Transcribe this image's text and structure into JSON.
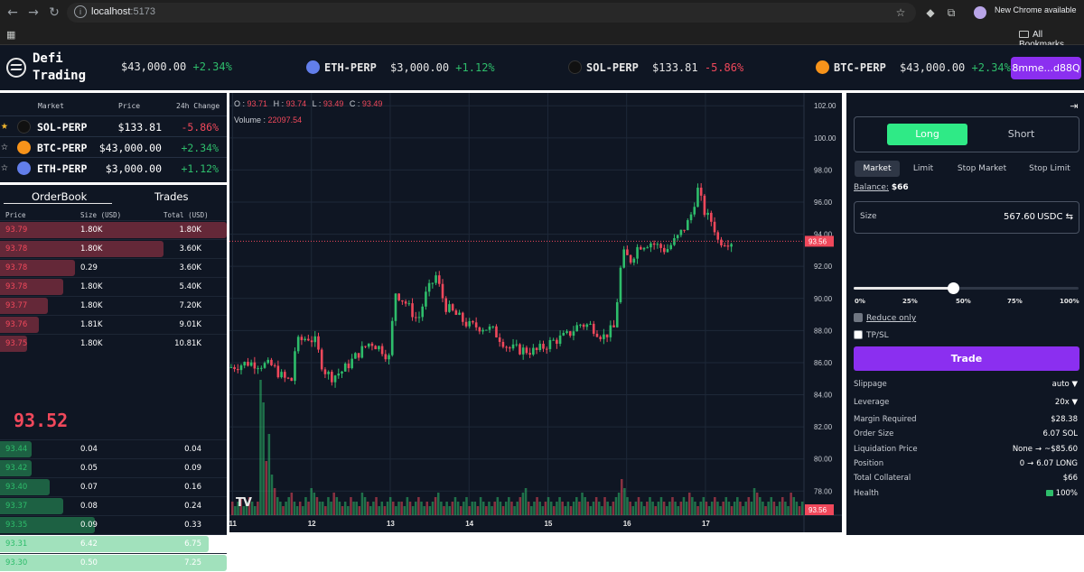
{
  "browser": {
    "url_host": "localhost",
    "url_port": ":5173",
    "new_chrome_label": "New Chrome available",
    "all_bookmarks_label": "All Bookmarks"
  },
  "header": {
    "brand_line1": "Defi",
    "brand_line2": "Trading",
    "tickers": [
      {
        "symbol": "",
        "price": "$43,000.00",
        "change": "+2.34%",
        "direction": "up",
        "coin_color": ""
      },
      {
        "symbol": "ETH-PERP",
        "price": "$3,000.00",
        "change": "+1.12%",
        "direction": "up",
        "coin_color": "#627eea"
      },
      {
        "symbol": "SOL-PERP",
        "price": "$133.81",
        "change": "-5.86%",
        "direction": "down",
        "coin_color": "#111111"
      },
      {
        "symbol": "BTC-PERP",
        "price": "$43,000.00",
        "change": "+2.34%",
        "direction": "up",
        "coin_color": "#f7931a"
      }
    ],
    "wallet_label": "8mme...d88Q"
  },
  "markets": {
    "headers": {
      "market": "Market",
      "price": "Price",
      "change": "24h Change"
    },
    "rows": [
      {
        "symbol": "SOL-PERP",
        "price": "$133.81",
        "change": "-5.86%",
        "direction": "down",
        "favorite": true,
        "coin_color": "#111111"
      },
      {
        "symbol": "BTC-PERP",
        "price": "$43,000.00",
        "change": "+2.34%",
        "direction": "up",
        "favorite": false,
        "coin_color": "#f7931a"
      },
      {
        "symbol": "ETH-PERP",
        "price": "$3,000.00",
        "change": "+1.12%",
        "direction": "up",
        "favorite": false,
        "coin_color": "#627eea"
      }
    ]
  },
  "orderbook": {
    "tabs": [
      "OrderBook",
      "Trades"
    ],
    "active_tab": "OrderBook",
    "headers": {
      "price": "Price",
      "size": "Size (USD)",
      "total": "Total (USD)"
    },
    "asks": [
      {
        "price": "93.79",
        "size": "1.80K",
        "total": "1.80K",
        "depth": 1.0
      },
      {
        "price": "93.78",
        "size": "1.80K",
        "total": "3.60K",
        "depth": 0.72
      },
      {
        "price": "93.78",
        "size": "0.29",
        "total": "3.60K",
        "depth": 0.33
      },
      {
        "price": "93.78",
        "size": "1.80K",
        "total": "5.40K",
        "depth": 0.28
      },
      {
        "price": "93.77",
        "size": "1.80K",
        "total": "7.20K",
        "depth": 0.21
      },
      {
        "price": "93.76",
        "size": "1.81K",
        "total": "9.01K",
        "depth": 0.17
      },
      {
        "price": "93.75",
        "size": "1.80K",
        "total": "10.81K",
        "depth": 0.12
      }
    ],
    "mid_price": "93.52",
    "bids": [
      {
        "price": "93.44",
        "size": "0.04",
        "total": "0.04",
        "depth": 0.14
      },
      {
        "price": "93.42",
        "size": "0.05",
        "total": "0.09",
        "depth": 0.14
      },
      {
        "price": "93.40",
        "size": "0.07",
        "total": "0.16",
        "depth": 0.22
      },
      {
        "price": "93.37",
        "size": "0.08",
        "total": "0.24",
        "depth": 0.28
      },
      {
        "price": "93.35",
        "size": "0.09",
        "total": "0.33",
        "depth": 0.42
      },
      {
        "price": "93.31",
        "size": "6.42",
        "total": "6.75",
        "depth": 0.92
      },
      {
        "price": "93.30",
        "size": "0.50",
        "total": "7.25",
        "depth": 1.0
      }
    ]
  },
  "chart": {
    "ohlc": {
      "o_label": "O",
      "o": "93.71",
      "h_label": "H",
      "h": "93.74",
      "l_label": "L",
      "l": "93.49",
      "c_label": "C",
      "c": "93.49"
    },
    "volume_label": "Volume :",
    "volume_value": "22097.54",
    "logo_text": "TV",
    "last_price_tag": "93.56",
    "last_volume_tag": "93.56"
  },
  "chart_data": {
    "type": "candlestick",
    "y_ticks": [
      "102.00",
      "100.00",
      "98.00",
      "96.00",
      "94.00",
      "92.00",
      "90.00",
      "88.00",
      "86.00",
      "84.00",
      "82.00",
      "80.00",
      "78.00"
    ],
    "ylim": [
      76.5,
      102.8
    ],
    "x_ticks": [
      "11",
      "12",
      "13",
      "14",
      "15",
      "16",
      "17"
    ],
    "x_tick_positions_days": [
      11,
      12,
      13,
      14,
      15,
      16,
      17
    ],
    "xlim": [
      10.96,
      18.25
    ],
    "last_price": 93.56,
    "close_path": [
      [
        10.96,
        85.7
      ],
      [
        11.2,
        86.0
      ],
      [
        11.5,
        85.8
      ],
      [
        11.65,
        85.0
      ],
      [
        11.75,
        84.9
      ],
      [
        11.8,
        87.2
      ],
      [
        11.95,
        87.6
      ],
      [
        12.05,
        87.3
      ],
      [
        12.15,
        85.6
      ],
      [
        12.25,
        85.1
      ],
      [
        12.4,
        85.5
      ],
      [
        12.6,
        86.6
      ],
      [
        12.75,
        87.3
      ],
      [
        12.9,
        86.8
      ],
      [
        13.0,
        86.2
      ],
      [
        13.05,
        90.5
      ],
      [
        13.2,
        89.7
      ],
      [
        13.35,
        88.6
      ],
      [
        13.45,
        90.2
      ],
      [
        13.58,
        91.4
      ],
      [
        13.7,
        89.5
      ],
      [
        13.85,
        88.9
      ],
      [
        14.0,
        88.3
      ],
      [
        14.2,
        88.2
      ],
      [
        14.3,
        88.0
      ],
      [
        14.4,
        87.5
      ],
      [
        14.5,
        86.9
      ],
      [
        14.65,
        86.8
      ],
      [
        14.85,
        86.7
      ],
      [
        15.05,
        87.3
      ],
      [
        15.25,
        87.7
      ],
      [
        15.4,
        88.4
      ],
      [
        15.55,
        88.3
      ],
      [
        15.7,
        87.6
      ],
      [
        15.85,
        88.2
      ],
      [
        15.9,
        91.0
      ],
      [
        15.95,
        92.8
      ],
      [
        16.05,
        92.4
      ],
      [
        16.15,
        93.3
      ],
      [
        16.3,
        93.5
      ],
      [
        16.5,
        93.0
      ],
      [
        16.65,
        93.8
      ],
      [
        16.8,
        94.9
      ],
      [
        16.9,
        96.8
      ],
      [
        17.0,
        95.2
      ],
      [
        17.1,
        94.7
      ],
      [
        17.15,
        93.6
      ],
      [
        17.35,
        93.56
      ]
    ],
    "volumes": [
      3,
      2,
      3,
      4,
      2,
      3,
      4,
      3,
      2,
      3,
      30,
      25,
      12,
      18,
      9,
      6,
      4,
      3,
      2,
      3,
      4,
      5,
      3,
      2,
      3,
      2,
      4,
      3,
      6,
      5,
      4,
      3,
      3,
      2,
      4,
      3,
      5,
      4,
      3,
      2,
      3,
      2,
      4,
      3,
      3,
      2,
      5,
      4,
      3,
      2,
      3,
      4,
      2,
      3,
      2,
      3,
      4,
      3,
      2,
      3,
      3,
      2,
      4,
      3,
      2,
      3,
      4,
      3,
      2,
      3,
      2,
      3,
      4,
      5,
      3,
      2,
      3,
      2,
      3,
      4,
      3,
      2,
      3,
      4,
      2,
      3,
      3,
      2,
      4,
      3,
      2,
      3,
      2,
      3,
      4,
      3,
      2,
      3,
      4,
      3,
      2,
      3,
      4,
      5,
      6,
      3,
      2,
      3,
      4,
      3,
      2,
      3,
      4,
      3,
      2,
      3,
      4,
      3,
      2,
      3,
      2,
      3,
      4,
      3,
      5,
      4,
      3,
      2,
      3,
      4,
      3,
      2,
      4,
      3,
      2,
      3,
      4,
      5,
      8,
      6,
      4,
      3,
      2,
      3,
      4,
      3,
      2,
      3,
      4,
      3,
      2,
      3,
      4,
      3,
      2,
      3,
      4,
      3,
      2,
      3,
      4,
      3,
      5,
      4,
      3,
      2,
      3,
      4,
      3,
      2,
      3,
      4,
      3,
      2,
      3,
      4,
      3,
      2,
      3,
      4,
      3,
      2,
      3,
      4,
      3,
      6,
      5,
      4,
      3,
      2,
      3,
      4,
      3,
      2,
      3,
      4,
      3,
      2,
      5,
      4,
      3,
      2,
      3
    ]
  },
  "trade": {
    "side_tabs": {
      "long": "Long",
      "short": "Short"
    },
    "order_tabs": [
      "Market",
      "Limit",
      "Stop Market",
      "Stop Limit"
    ],
    "balance_label": "Balance:",
    "balance_value": "$66",
    "size_label": "Size",
    "size_value": "567.60",
    "size_unit": "USDC ⇆",
    "slider_fraction": 0.44,
    "slider_marks": [
      "0%",
      "25%",
      "50%",
      "75%",
      "100%"
    ],
    "reduce_only_label": "Reduce only",
    "tpsl_label": "TP/SL",
    "trade_button": "Trade",
    "slippage_label": "Slippage",
    "slippage_value": "auto ▼",
    "leverage_label": "Leverage",
    "leverage_value": "20x ▼",
    "margin_label": "Margin Required",
    "margin_value": "$28.38",
    "order_size_label": "Order Size",
    "order_size_value": "6.07 SOL",
    "liq_label": "Liquidation Price",
    "liq_from": "None",
    "liq_to": "~$85.60",
    "position_label": "Position",
    "position_from": "0",
    "position_to": "6.07 LONG",
    "collateral_label": "Total Collateral",
    "collateral_value": "$66",
    "health_label": "Health",
    "health_value": "100%",
    "colors": {
      "long": "#2fea86",
      "trade": "#8b2ff0",
      "ask": "#f0485b",
      "bid": "#2ebd6b"
    }
  }
}
